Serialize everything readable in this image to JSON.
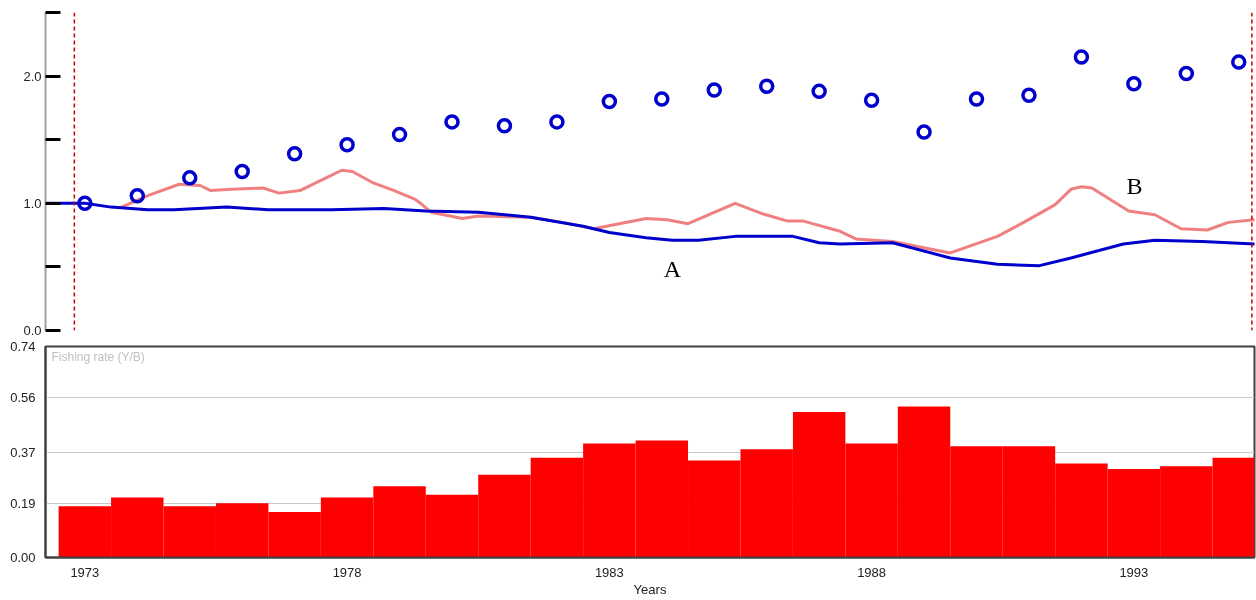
{
  "chart_data": [
    {
      "type": "line",
      "xlim": [
        1972.25,
        1995.3
      ],
      "ylim": [
        0,
        2.5
      ],
      "yticks": [
        {
          "value": 0,
          "label": "0.0"
        },
        {
          "value": 0.5,
          "label": null
        },
        {
          "value": 1,
          "label": "1.0"
        },
        {
          "value": 1.5,
          "label": null
        },
        {
          "value": 2,
          "label": "2.0"
        },
        {
          "value": 2.5,
          "label": null
        }
      ],
      "tick_labels": "y",
      "grid": false,
      "series": [
        {
          "type": "line",
          "name": "B",
          "color": "#f08080",
          "x": [
            1973.7,
            1974.2,
            1974.8,
            1975.2,
            1975.4,
            1975.8,
            1976.4,
            1976.7,
            1977.1,
            1977.5,
            1977.9,
            1978.1,
            1978.5,
            1978.9,
            1979.3,
            1979.4,
            1979.6,
            1980.2,
            1980.5,
            1981.5,
            1982.1,
            1982.7,
            1983.7,
            1984.1,
            1984.5,
            1985.4,
            1985.9,
            1986.4,
            1986.7,
            1987.4,
            1987.7,
            1988.4,
            1989.5,
            1990.4,
            1990.9,
            1991.5,
            1991.8,
            1992.0,
            1992.2,
            1992.9,
            1993.4,
            1993.9,
            1994.4,
            1994.8,
            1995.3
          ],
          "values": [
            0.97,
            1.06,
            1.15,
            1.14,
            1.1,
            1.11,
            1.12,
            1.08,
            1.1,
            1.18,
            1.26,
            1.25,
            1.16,
            1.1,
            1.03,
            1.0,
            0.93,
            0.88,
            0.9,
            0.89,
            0.85,
            0.8,
            0.88,
            0.87,
            0.84,
            1.0,
            0.92,
            0.86,
            0.86,
            0.78,
            0.72,
            0.7,
            0.61,
            0.74,
            0.85,
            0.99,
            1.11,
            1.13,
            1.12,
            0.94,
            0.91,
            0.8,
            0.79,
            0.85,
            0.87
          ]
        },
        {
          "type": "line",
          "name": "A",
          "color": "#0000cc",
          "x": [
            1972.25,
            1973.0,
            1973.5,
            1974.2,
            1974.7,
            1975.7,
            1976.5,
            1977.7,
            1978.7,
            1979.5,
            1980.5,
            1981.5,
            1982.5,
            1983.0,
            1983.7,
            1984.2,
            1984.7,
            1985.4,
            1986.5,
            1987.0,
            1987.4,
            1988.4,
            1989.5,
            1990.4,
            1991.2,
            1991.8,
            1992.8,
            1993.4,
            1994.3,
            1995.3
          ],
          "values": [
            1.0,
            1.0,
            0.97,
            0.95,
            0.95,
            0.97,
            0.95,
            0.95,
            0.96,
            0.94,
            0.93,
            0.89,
            0.82,
            0.77,
            0.73,
            0.71,
            0.71,
            0.74,
            0.74,
            0.69,
            0.68,
            0.69,
            0.57,
            0.52,
            0.51,
            0.57,
            0.68,
            0.71,
            0.7,
            0.68
          ]
        },
        {
          "type": "scatter",
          "marker": "circle",
          "color": "#0000cc",
          "x": [
            1973,
            1974,
            1975,
            1976,
            1977,
            1978,
            1979,
            1980,
            1981,
            1982,
            1983,
            1984,
            1985,
            1986,
            1987,
            1988,
            1989,
            1990,
            1991,
            1992,
            1993,
            1994,
            1995
          ],
          "values": [
            1.0,
            1.06,
            1.2,
            1.25,
            1.39,
            1.46,
            1.54,
            1.64,
            1.61,
            1.64,
            1.8,
            1.82,
            1.89,
            1.92,
            1.88,
            1.81,
            1.56,
            1.82,
            1.85,
            2.15,
            1.94,
            2.02,
            2.11
          ]
        }
      ],
      "ref_lines": [
        {
          "axis": "x",
          "value": 1972.8,
          "color": "#cc0000",
          "line_style": "dashed"
        },
        {
          "axis": "x",
          "value": 1995.25,
          "color": "#cc0000",
          "line_style": "dashed"
        }
      ]
    },
    {
      "type": "bar",
      "title": "Fishing rate (Y/B)",
      "xlabel": "Years",
      "color": "#ff0000",
      "x": [
        1973,
        1974,
        1975,
        1976,
        1977,
        1978,
        1979,
        1980,
        1981,
        1982,
        1983,
        1984,
        1985,
        1986,
        1987,
        1988,
        1989,
        1990,
        1991,
        1992,
        1993,
        1994,
        1995
      ],
      "values": [
        0.18,
        0.21,
        0.18,
        0.19,
        0.16,
        0.21,
        0.25,
        0.22,
        0.29,
        0.35,
        0.4,
        0.41,
        0.34,
        0.38,
        0.51,
        0.4,
        0.53,
        0.39,
        0.39,
        0.33,
        0.31,
        0.32,
        0.35
      ],
      "xlim": [
        1972.25,
        1995.3
      ],
      "xticks": [
        1973,
        1978,
        1983,
        1988,
        1993
      ],
      "ylim": [
        0,
        0.74
      ],
      "yticks": [
        {
          "value": 0,
          "label": "0.00"
        },
        0.19,
        0.37,
        0.56,
        0.74
      ],
      "grid": "y"
    }
  ]
}
